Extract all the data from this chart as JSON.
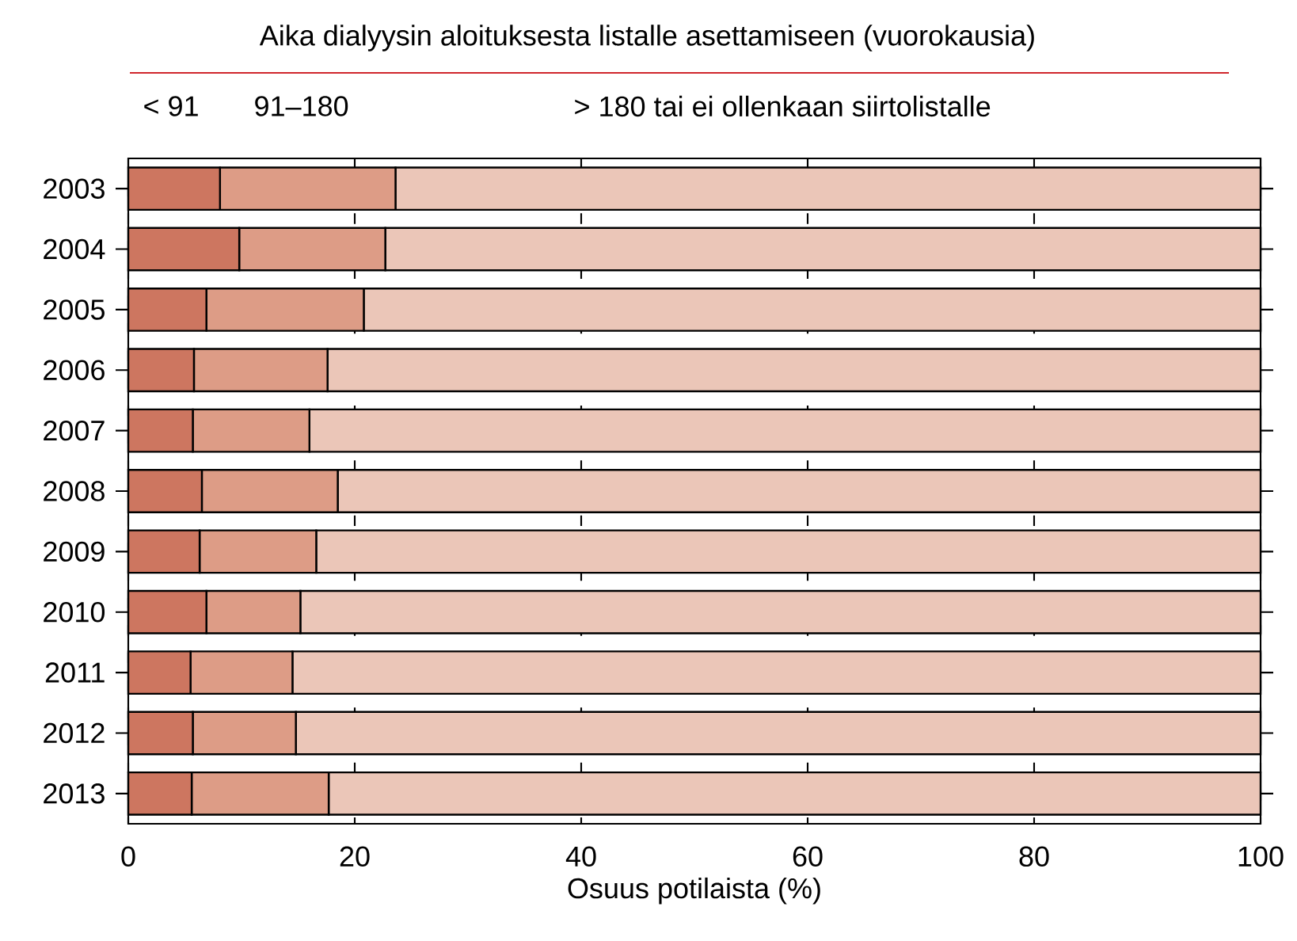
{
  "chart_data": {
    "type": "bar",
    "orientation": "horizontal",
    "stacked": true,
    "title": "Aika dialyysin aloituksesta listalle asettamiseen (vuorokausia)",
    "xlabel": "Osuus potilaista (%)",
    "categories": [
      "2003",
      "2004",
      "2005",
      "2006",
      "2007",
      "2008",
      "2009",
      "2010",
      "2011",
      "2012",
      "2013"
    ],
    "series": [
      {
        "name": "< 91",
        "color": "#cd7660",
        "values": [
          8.1,
          9.8,
          6.9,
          5.8,
          5.7,
          6.5,
          6.3,
          6.9,
          5.5,
          5.7,
          5.6
        ]
      },
      {
        "name": "91–180",
        "color": "#dd9c86",
        "values": [
          15.5,
          12.9,
          13.9,
          11.8,
          10.3,
          12.0,
          10.3,
          8.3,
          9.0,
          9.1,
          12.1
        ]
      },
      {
        "name": "> 180 tai ei ollenkaan siirtolistalle",
        "color": "#ebc6b8",
        "values": [
          76.4,
          77.3,
          79.2,
          82.4,
          84.0,
          81.5,
          83.4,
          84.8,
          85.5,
          85.2,
          82.3
        ]
      }
    ],
    "xlim": [
      0,
      100
    ],
    "xticks": [
      0,
      20,
      40,
      60,
      80,
      100
    ],
    "grid": "x",
    "legend": "top"
  }
}
